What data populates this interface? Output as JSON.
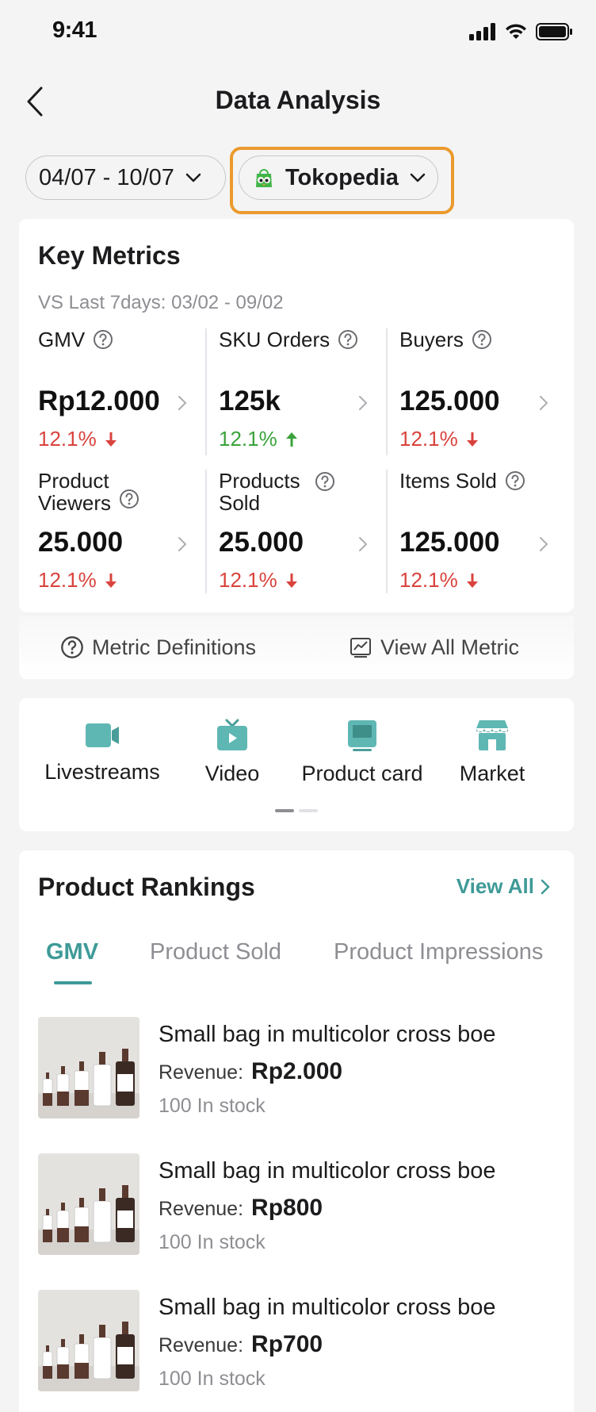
{
  "status_bar": {
    "time": "9:41"
  },
  "header": {
    "title": "Data Analysis"
  },
  "filters": {
    "date_range": "04/07 - 10/07",
    "shop": "Tokopedia"
  },
  "key_metrics": {
    "title": "Key Metrics",
    "comparison": "VS Last 7days: 03/02 - 09/02",
    "items": [
      {
        "label": "GMV",
        "value": "Rp12.000",
        "delta": "12.1%",
        "trend": "down"
      },
      {
        "label": "SKU Orders",
        "value": "125k",
        "delta": "12.1%",
        "trend": "up"
      },
      {
        "label": "Buyers",
        "value": "125.000",
        "delta": "12.1%",
        "trend": "down"
      },
      {
        "label_line1": "Product",
        "label_line2": "Viewers",
        "value": "25.000",
        "delta": "12.1%",
        "trend": "down"
      },
      {
        "label_line1": "Products",
        "label_line2": "Sold",
        "value": "25.000",
        "delta": "12.1%",
        "trend": "down"
      },
      {
        "label": "Items Sold",
        "value": "125.000",
        "delta": "12.1%",
        "trend": "down"
      }
    ],
    "footer": {
      "definitions_label": "Metric Definitions",
      "view_all_label": "View All Metric"
    }
  },
  "shortcuts": [
    {
      "label": "Livestreams",
      "icon": "camera-icon"
    },
    {
      "label": "Video",
      "icon": "tv-icon"
    },
    {
      "label": "Product card",
      "icon": "monitor-icon"
    },
    {
      "label": "Market",
      "icon": "store-icon"
    }
  ],
  "rankings": {
    "title": "Product Rankings",
    "view_all": "View All",
    "tabs": [
      "GMV",
      "Product Sold",
      "Product Impressions"
    ],
    "active_tab": "GMV",
    "products": [
      {
        "name": "Small bag in multicolor cross boe",
        "revenue_label": "Revenue:",
        "revenue": "Rp2.000",
        "stock": "100 In stock"
      },
      {
        "name": "Small bag in multicolor cross boe",
        "revenue_label": "Revenue:",
        "revenue": "Rp800",
        "stock": "100 In stock"
      },
      {
        "name": "Small bag in multicolor cross boe",
        "revenue_label": "Revenue:",
        "revenue": "Rp700",
        "stock": "100 In stock"
      }
    ]
  },
  "colors": {
    "accent": "#3e9a97",
    "down": "#d9433d",
    "up": "#3aa33a",
    "highlight": "#eb9a2e"
  }
}
